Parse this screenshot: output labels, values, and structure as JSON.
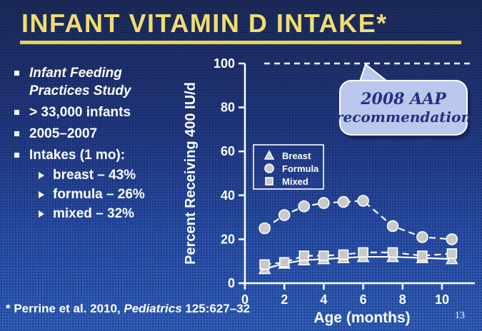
{
  "slide": {
    "title": "INFANT VITAMIN D INTAKE*",
    "page_number": "13",
    "accent_color": "#e7d44f",
    "title_color": "#f0dd72",
    "background_top": "#1c2a54",
    "background_bottom": "#3160b8"
  },
  "bullets": [
    {
      "text": "Infant Feeding Practices Study"
    },
    {
      "text": "> 33,000 infants"
    },
    {
      "text": "2005–2007"
    },
    {
      "text": "Intakes (1 mo):"
    }
  ],
  "sub_bullets": [
    {
      "text": "breast  – 43%"
    },
    {
      "text": "formula – 26%"
    },
    {
      "text": "mixed – 32%"
    }
  ],
  "callout": {
    "line1": "2008 AAP",
    "line2": "recommendation",
    "fill": "#b9c8ec",
    "text_color": "#272f85"
  },
  "footer": {
    "prefix": "* Perrine et al. 2010, ",
    "journal": "Pediatrics",
    "suffix": " 125:627–32"
  },
  "chart_data": {
    "type": "line",
    "title": "",
    "xlabel": "Age (months)",
    "ylabel": "Percent Receiving 400 IU/d",
    "xlim": [
      0,
      11.5
    ],
    "ylim": [
      0,
      100
    ],
    "x_ticks": [
      0,
      2,
      4,
      6,
      8,
      10
    ],
    "y_ticks": [
      0,
      20,
      40,
      60,
      80,
      100
    ],
    "grid": false,
    "legend_position": "upper-left-inside",
    "x": [
      1,
      2,
      3,
      4,
      5,
      6,
      7.5,
      9,
      10.5
    ],
    "series": [
      {
        "name": "Breast",
        "marker": "triangle",
        "line": "solid",
        "values": [
          6.5,
          9,
          10.5,
          11,
          11.5,
          12,
          12,
          11.5,
          11
        ]
      },
      {
        "name": "Formula",
        "marker": "circle",
        "line": "dashed",
        "values": [
          25,
          31,
          35,
          36.5,
          37,
          37.5,
          26,
          21,
          20
        ]
      },
      {
        "name": "Mixed",
        "marker": "square",
        "line": "dashed",
        "values": [
          8.5,
          9.5,
          12.5,
          12.5,
          13,
          14,
          14,
          12.5,
          13.5
        ]
      }
    ],
    "reference_line": {
      "value": 100,
      "style": "dashed",
      "label": "2008 AAP recommendation"
    },
    "marker_color": "#c9c9c9",
    "line_color": "#ffffff",
    "axis_color": "#ffffff"
  }
}
